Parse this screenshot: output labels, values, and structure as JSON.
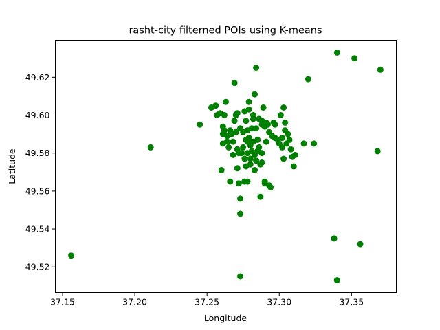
{
  "chart_data": {
    "type": "scatter",
    "title": "rasht-city filterned POIs using K-means",
    "xlabel": "Longitude",
    "ylabel": "Latitude",
    "xlim": [
      37.145,
      37.381
    ],
    "ylim": [
      49.5065,
      49.6395
    ],
    "xticks": [
      37.15,
      37.2,
      37.25,
      37.3,
      37.35
    ],
    "xtick_labels": [
      "37.15",
      "37.20",
      "37.25",
      "37.30",
      "37.35"
    ],
    "yticks": [
      49.52,
      49.54,
      49.56,
      49.58,
      49.6,
      49.62
    ],
    "ytick_labels": [
      "49.52",
      "49.54",
      "49.56",
      "49.58",
      "49.60",
      "49.62"
    ],
    "grid": false,
    "marker_color": "#008000",
    "points": [
      [
        37.156,
        49.526
      ],
      [
        37.211,
        49.583
      ],
      [
        37.245,
        49.595
      ],
      [
        37.253,
        49.604
      ],
      [
        37.256,
        49.605
      ],
      [
        37.257,
        49.6
      ],
      [
        37.259,
        49.601
      ],
      [
        37.26,
        49.571
      ],
      [
        37.261,
        49.594
      ],
      [
        37.261,
        49.59
      ],
      [
        37.261,
        49.585
      ],
      [
        37.262,
        49.6
      ],
      [
        37.262,
        49.592
      ],
      [
        37.263,
        49.607
      ],
      [
        37.264,
        49.589
      ],
      [
        37.264,
        49.586
      ],
      [
        37.265,
        49.583
      ],
      [
        37.266,
        49.565
      ],
      [
        37.266,
        49.592
      ],
      [
        37.267,
        49.59
      ],
      [
        37.268,
        49.579
      ],
      [
        37.268,
        49.586
      ],
      [
        37.269,
        49.597
      ],
      [
        37.269,
        49.617
      ],
      [
        37.27,
        49.6
      ],
      [
        37.27,
        49.591
      ],
      [
        37.271,
        49.572
      ],
      [
        37.271,
        49.582
      ],
      [
        37.271,
        49.601
      ],
      [
        37.272,
        49.564
      ],
      [
        37.272,
        49.58
      ],
      [
        37.273,
        49.556
      ],
      [
        37.273,
        49.548
      ],
      [
        37.273,
        49.515
      ],
      [
        37.273,
        49.593
      ],
      [
        37.274,
        49.58
      ],
      [
        37.275,
        49.591
      ],
      [
        37.275,
        49.583
      ],
      [
        37.276,
        49.577
      ],
      [
        37.276,
        49.602
      ],
      [
        37.276,
        49.565
      ],
      [
        37.277,
        49.597
      ],
      [
        37.277,
        49.587
      ],
      [
        37.277,
        49.573
      ],
      [
        37.278,
        49.586
      ],
      [
        37.278,
        49.58
      ],
      [
        37.278,
        49.565
      ],
      [
        37.278,
        49.592
      ],
      [
        37.279,
        49.607
      ],
      [
        37.279,
        49.603
      ],
      [
        37.279,
        49.588
      ],
      [
        37.28,
        49.577
      ],
      [
        37.28,
        49.584
      ],
      [
        37.28,
        49.574
      ],
      [
        37.281,
        49.593
      ],
      [
        37.281,
        49.581
      ],
      [
        37.282,
        49.598
      ],
      [
        37.282,
        49.6
      ],
      [
        37.282,
        49.586
      ],
      [
        37.283,
        49.611
      ],
      [
        37.283,
        49.579
      ],
      [
        37.283,
        49.571
      ],
      [
        37.284,
        49.576
      ],
      [
        37.284,
        49.593
      ],
      [
        37.284,
        49.625
      ],
      [
        37.285,
        49.587
      ],
      [
        37.285,
        49.581
      ],
      [
        37.286,
        49.598
      ],
      [
        37.286,
        49.583
      ],
      [
        37.287,
        49.574
      ],
      [
        37.287,
        49.557
      ],
      [
        37.288,
        49.597
      ],
      [
        37.288,
        49.58
      ],
      [
        37.288,
        49.575
      ],
      [
        37.288,
        49.595
      ],
      [
        37.289,
        49.604
      ],
      [
        37.29,
        49.565
      ],
      [
        37.29,
        49.594
      ],
      [
        37.29,
        49.564
      ],
      [
        37.291,
        49.586
      ],
      [
        37.291,
        49.596
      ],
      [
        37.292,
        49.595
      ],
      [
        37.293,
        49.563
      ],
      [
        37.293,
        49.591
      ],
      [
        37.294,
        49.562
      ],
      [
        37.295,
        49.589
      ],
      [
        37.296,
        49.596
      ],
      [
        37.297,
        49.588
      ],
      [
        37.297,
        49.595
      ],
      [
        37.299,
        49.587
      ],
      [
        37.3,
        49.585
      ],
      [
        37.301,
        49.6
      ],
      [
        37.302,
        49.588
      ],
      [
        37.302,
        49.583
      ],
      [
        37.303,
        49.604
      ],
      [
        37.303,
        49.577
      ],
      [
        37.304,
        49.596
      ],
      [
        37.304,
        49.592
      ],
      [
        37.305,
        49.585
      ],
      [
        37.306,
        49.59
      ],
      [
        37.307,
        49.587
      ],
      [
        37.308,
        49.582
      ],
      [
        37.309,
        49.578
      ],
      [
        37.31,
        49.573
      ],
      [
        37.311,
        49.579
      ],
      [
        37.317,
        49.585
      ],
      [
        37.32,
        49.619
      ],
      [
        37.324,
        49.585
      ],
      [
        37.338,
        49.535
      ],
      [
        37.34,
        49.633
      ],
      [
        37.34,
        49.513
      ],
      [
        37.352,
        49.63
      ],
      [
        37.356,
        49.532
      ],
      [
        37.368,
        49.581
      ],
      [
        37.37,
        49.624
      ]
    ]
  }
}
